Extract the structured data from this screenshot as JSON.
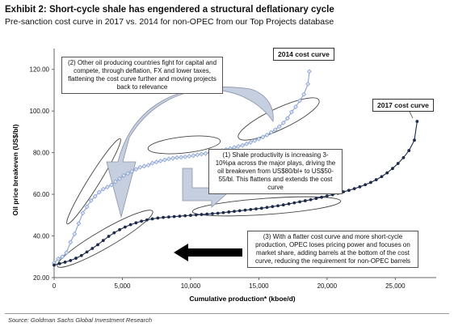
{
  "header": {
    "title": "Exhibit 2: Short-cycle shale has engendered a structural deflationary cycle",
    "subtitle": "Pre-sanction cost curve in 2017 vs. 2014 for non-OPEC from our Top Projects database"
  },
  "source": "Source: Goldman Sachs Global Investment Research",
  "annotations": {
    "note2": "(2) Other oil producing countries fight for capital and compete, through deflation, FX and lower taxes, flattening the cost curve further and moving projects back to relevance",
    "note1": "(1) Shale productivity is increasing 3-10%pa across the major plays, driving the oil breakeven from US$80/bl+ to US$50-55/bl. This flattens and extends the cost curve",
    "note3": "(3) With a flatter cost curve and more short-cycle production, OPEC loses pricing power and focuses on market share, adding barrels at the bottom of the cost curve, reducing the requirement for non-OPEC barrels",
    "label2014": "2014 cost curve",
    "label2017": "2017 cost curve"
  },
  "colors": {
    "curve2014": "#8aa2d2",
    "curve2017": "#1d2a4a",
    "arrow": "#b9c4d8",
    "blackArrow": "#000000"
  },
  "chart_data": {
    "type": "scatter",
    "xlabel": "Cumulative production* (kboe/d)",
    "ylabel": "Oil price breakeven (US$/bl)",
    "xlim": [
      0,
      28000
    ],
    "ylim": [
      20,
      130
    ],
    "xticks": [
      0,
      5000,
      10000,
      15000,
      20000,
      25000
    ],
    "xtick_labels": [
      "0",
      "5,000",
      "10,000",
      "15,000",
      "20,000",
      "25,000"
    ],
    "yticks": [
      20,
      40,
      60,
      80,
      100,
      120
    ],
    "ytick_labels": [
      "20.00",
      "40.00",
      "60.00",
      "80.00",
      "100.00",
      "120.00"
    ],
    "grid": false,
    "series": [
      {
        "name": "2014 cost curve",
        "x": [
          0,
          300,
          600,
          900,
          1200,
          1500,
          1800,
          2100,
          2400,
          2700,
          3000,
          3300,
          3600,
          3900,
          4200,
          4500,
          4800,
          5100,
          5400,
          5700,
          6000,
          6300,
          6600,
          6900,
          7200,
          7500,
          7800,
          8100,
          8400,
          8700,
          9000,
          9300,
          9600,
          9900,
          10200,
          10500,
          10800,
          11100,
          11400,
          11700,
          12000,
          12300,
          12600,
          12900,
          13200,
          13500,
          13800,
          14100,
          14400,
          14700,
          15000,
          15300,
          15600,
          15900,
          16200,
          16500,
          16800,
          17100,
          17400,
          17700,
          18000,
          18300,
          18600,
          18700
        ],
        "y": [
          27,
          29,
          30,
          32,
          37,
          41,
          46,
          51,
          54,
          57,
          59,
          61,
          62.5,
          63.5,
          64.5,
          66,
          67.5,
          69,
          70,
          71,
          72,
          73,
          73.5,
          74,
          75,
          75.5,
          76,
          76.5,
          77,
          77.3,
          77.6,
          77.8,
          78,
          78.3,
          78.6,
          79,
          79.3,
          79.6,
          80,
          80.3,
          80.6,
          81,
          81.5,
          82,
          82.5,
          83,
          83.5,
          84.2,
          85,
          85.8,
          86.6,
          87.5,
          88.5,
          89.7,
          91,
          92.5,
          94.3,
          96.5,
          99.5,
          102,
          105,
          108,
          113,
          119
        ]
      },
      {
        "name": "2017 cost curve",
        "x": [
          0,
          400,
          800,
          1200,
          1600,
          2000,
          2400,
          2800,
          3200,
          3600,
          4000,
          4400,
          4800,
          5200,
          5600,
          6000,
          6400,
          6800,
          7200,
          7600,
          8000,
          8400,
          8800,
          9200,
          9600,
          10000,
          10400,
          10800,
          11200,
          11600,
          12000,
          12400,
          12800,
          13200,
          13600,
          14000,
          14400,
          14800,
          15200,
          15600,
          16000,
          16400,
          16800,
          17200,
          17600,
          18000,
          18400,
          18800,
          19200,
          19600,
          20000,
          20400,
          20800,
          21200,
          21600,
          22000,
          22400,
          22800,
          23200,
          23600,
          24000,
          24400,
          24800,
          25200,
          25600,
          26000,
          26400,
          26600
        ],
        "y": [
          26,
          26.7,
          27.4,
          28.2,
          29.3,
          30.6,
          32.3,
          34,
          35.8,
          37.8,
          39.8,
          41.5,
          43,
          44.3,
          45.4,
          46.3,
          47.1,
          47.7,
          48.2,
          48.6,
          48.9,
          49.1,
          49.3,
          49.5,
          49.7,
          49.9,
          50.1,
          50.3,
          50.5,
          50.7,
          50.9,
          51.2,
          51.5,
          51.8,
          52.1,
          52.4,
          52.7,
          53,
          53.3,
          53.7,
          54.1,
          54.5,
          54.9,
          55.4,
          55.9,
          56.4,
          56.9,
          57.4,
          58,
          58.6,
          59.2,
          59.8,
          60.5,
          61.2,
          61.9,
          62.7,
          63.6,
          64.6,
          65.7,
          67,
          68.5,
          70.3,
          72.4,
          74.8,
          77.6,
          81,
          86,
          95
        ]
      }
    ]
  }
}
